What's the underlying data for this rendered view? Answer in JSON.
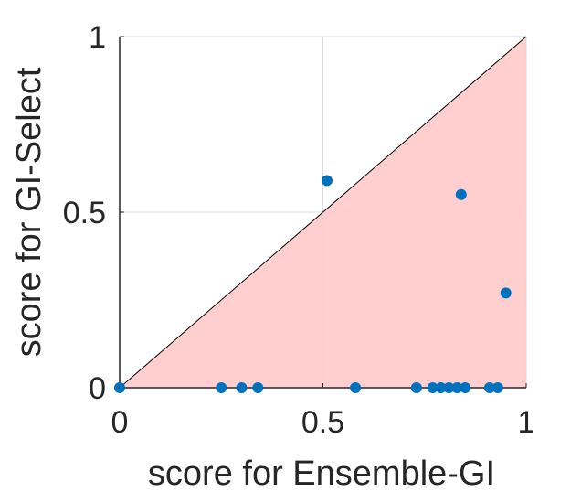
{
  "chart_data": {
    "type": "scatter",
    "xlabel": "score for Ensemble-GI",
    "ylabel": "score for GI-Select",
    "xlim": [
      0,
      1
    ],
    "ylim": [
      0,
      1
    ],
    "x_ticks": [
      0,
      0.5,
      1
    ],
    "y_ticks": [
      0,
      0.5,
      1
    ],
    "x_tick_labels": [
      "0",
      "0.5",
      "1"
    ],
    "y_tick_labels": [
      "0",
      "0.5",
      "1"
    ],
    "grid": true,
    "diagonal_line": true,
    "shaded_region": "below-diagonal",
    "colors": {
      "point": "#0072BD",
      "shade": "#FFC9C9",
      "diagonal": "#000000",
      "grid": "#DCDCDC"
    },
    "series": [
      {
        "points": [
          [
            0,
            0
          ],
          [
            0.25,
            0
          ],
          [
            0.3,
            0
          ],
          [
            0.34,
            0
          ],
          [
            0.51,
            0.59
          ],
          [
            0.58,
            0
          ],
          [
            0.73,
            0
          ],
          [
            0.77,
            0
          ],
          [
            0.79,
            0
          ],
          [
            0.81,
            0
          ],
          [
            0.83,
            0
          ],
          [
            0.84,
            0.55
          ],
          [
            0.85,
            0
          ],
          [
            0.91,
            0
          ],
          [
            0.93,
            0
          ],
          [
            0.95,
            0.27
          ]
        ]
      }
    ]
  }
}
